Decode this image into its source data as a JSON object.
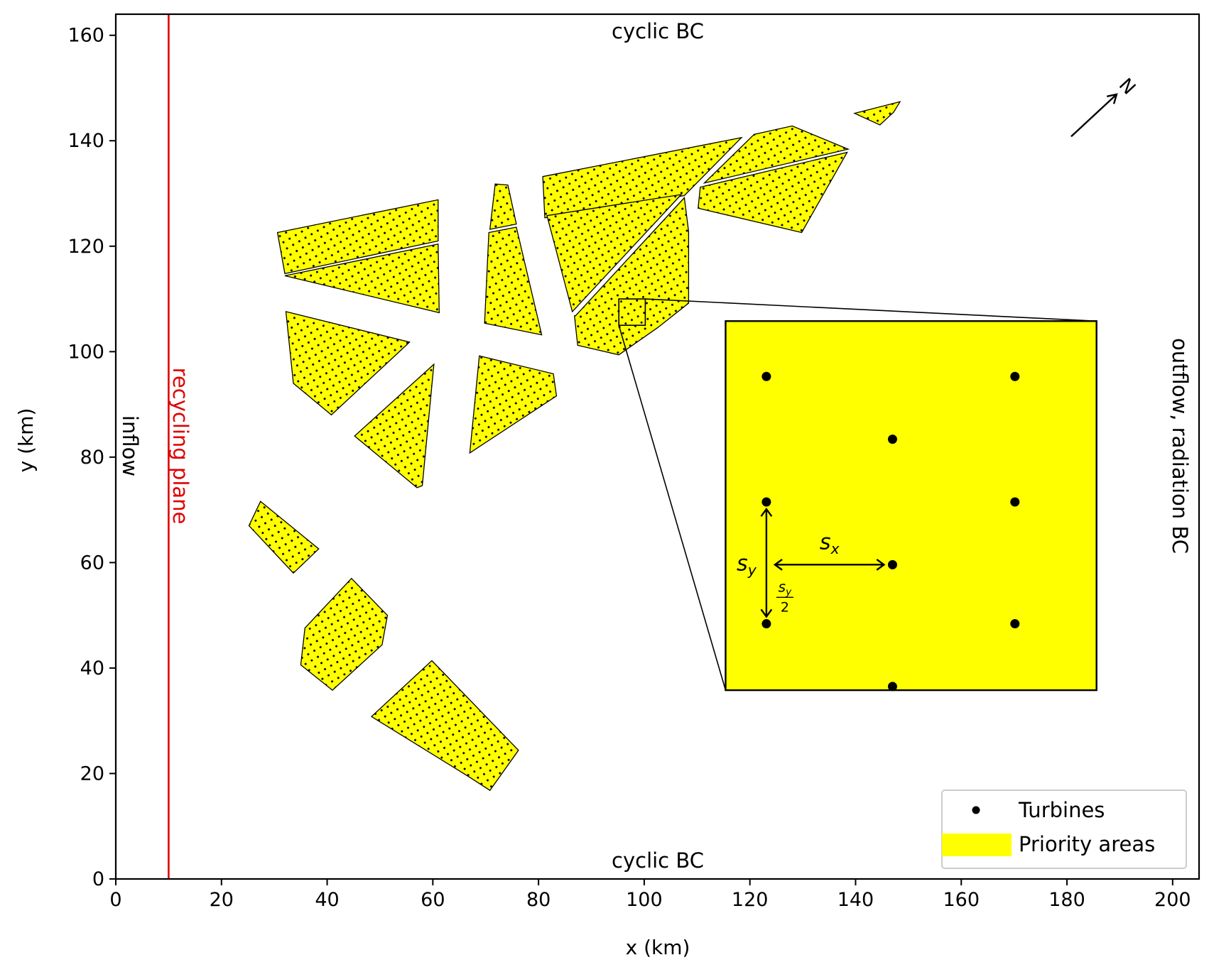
{
  "chart_data": {
    "type": "scatter",
    "xlabel": "x (km)",
    "ylabel": "y (km)",
    "xlim": [
      0,
      205
    ],
    "ylim": [
      0,
      164
    ],
    "xticks": [
      0,
      20,
      40,
      60,
      80,
      100,
      120,
      140,
      160,
      180,
      200
    ],
    "yticks": [
      0,
      20,
      40,
      60,
      80,
      100,
      120,
      140,
      160
    ],
    "grid": false,
    "legend": {
      "placement": "bottom-right",
      "entries": [
        {
          "label": "Turbines",
          "marker": "dot"
        },
        {
          "label": "Priority areas",
          "marker": "patch"
        }
      ]
    },
    "colors": {
      "priority_area": "#ffff00",
      "recycling_plane": "#e00000",
      "outline": "#000000"
    },
    "recycling_plane_x": 10,
    "annotations": {
      "top_bc": "cyclic BC",
      "bottom_bc": "cyclic BC",
      "left_bc": "inflow",
      "right_bc": "outflow, radiation BC",
      "recycling": "recycling plane",
      "north": "N",
      "sx": "s",
      "sx_sub": "x",
      "sy": "s",
      "sy_sub": "y",
      "half_num": "s",
      "half_num_sub": "y",
      "half_den": "2"
    },
    "priority_areas": [
      [
        [
          30.6,
          122.6
        ],
        [
          61,
          128.8
        ],
        [
          61,
          121
        ],
        [
          32,
          114.8
        ]
      ],
      [
        [
          32,
          114.4
        ],
        [
          61,
          120.4
        ],
        [
          61.2,
          107.4
        ]
      ],
      [
        [
          32.2,
          107.6
        ],
        [
          55.6,
          101.8
        ],
        [
          40.8,
          88
        ],
        [
          33.6,
          94
        ]
      ],
      [
        [
          45.2,
          84
        ],
        [
          60.2,
          97.6
        ],
        [
          58,
          74.6
        ],
        [
          57,
          74.2
        ]
      ],
      [
        [
          68.8,
          99.2
        ],
        [
          82.8,
          95.8
        ],
        [
          83.4,
          91.6
        ],
        [
          67,
          80.8
        ]
      ],
      [
        [
          27.4,
          71.6
        ],
        [
          38.4,
          62.6
        ],
        [
          33.6,
          58
        ],
        [
          25.2,
          67
        ]
      ],
      [
        [
          44.6,
          57
        ],
        [
          51.4,
          50
        ],
        [
          50.4,
          44.4
        ],
        [
          41,
          35.8
        ],
        [
          35,
          40.6
        ],
        [
          35.8,
          47.6
        ]
      ],
      [
        [
          59.8,
          41.4
        ],
        [
          76.2,
          24.4
        ],
        [
          70.8,
          16.8
        ],
        [
          66.8,
          19.4
        ],
        [
          48.4,
          30.8
        ]
      ],
      [
        [
          71.8,
          131.8
        ],
        [
          74.2,
          131.6
        ],
        [
          75.8,
          124.2
        ],
        [
          70.8,
          123.2
        ]
      ],
      [
        [
          70.6,
          122.6
        ],
        [
          75.8,
          123.6
        ],
        [
          80.6,
          103.2
        ],
        [
          69.8,
          105.4
        ]
      ],
      [
        [
          80.8,
          133.2
        ],
        [
          118.4,
          140.6
        ],
        [
          107.6,
          129.6
        ],
        [
          81.2,
          125.4
        ]
      ],
      [
        [
          81.6,
          125.8
        ],
        [
          107,
          129.8
        ],
        [
          86.4,
          107.6
        ]
      ],
      [
        [
          87,
          106.8
        ],
        [
          107.6,
          129.2
        ],
        [
          108.4,
          122.8
        ],
        [
          108.4,
          109.2
        ],
        [
          102.6,
          104.6
        ],
        [
          95.2,
          99.4
        ],
        [
          87.4,
          101.2
        ],
        [
          86.8,
          106.8
        ]
      ],
      [
        [
          120.8,
          141.2
        ],
        [
          128,
          142.8
        ],
        [
          138.6,
          138.4
        ],
        [
          111.4,
          132
        ]
      ],
      [
        [
          110.6,
          131.2
        ],
        [
          138.4,
          137.8
        ],
        [
          129.8,
          122.6
        ],
        [
          110.2,
          127.2
        ]
      ],
      [
        [
          139.8,
          145.2
        ],
        [
          148.4,
          147.4
        ],
        [
          147.2,
          145.4
        ],
        [
          144.6,
          143
        ]
      ]
    ],
    "zoom_box": {
      "x": [
        95.2,
        100.2
      ],
      "y": [
        105,
        110
      ]
    },
    "inset_axes": {
      "x": [
        115.4,
        185.6
      ],
      "y": [
        35.8,
        105.8
      ]
    },
    "inset_turbines_fraction": [
      [
        0.11,
        0.85
      ],
      [
        0.78,
        0.85
      ],
      [
        0.45,
        0.68
      ],
      [
        0.11,
        0.51
      ],
      [
        0.78,
        0.51
      ],
      [
        0.45,
        0.34
      ],
      [
        0.11,
        0.18
      ],
      [
        0.78,
        0.18
      ],
      [
        0.45,
        0.01
      ]
    ],
    "north_arrow": {
      "from": [
        180.8,
        140.8
      ],
      "to": [
        189.4,
        148.8
      ]
    }
  }
}
